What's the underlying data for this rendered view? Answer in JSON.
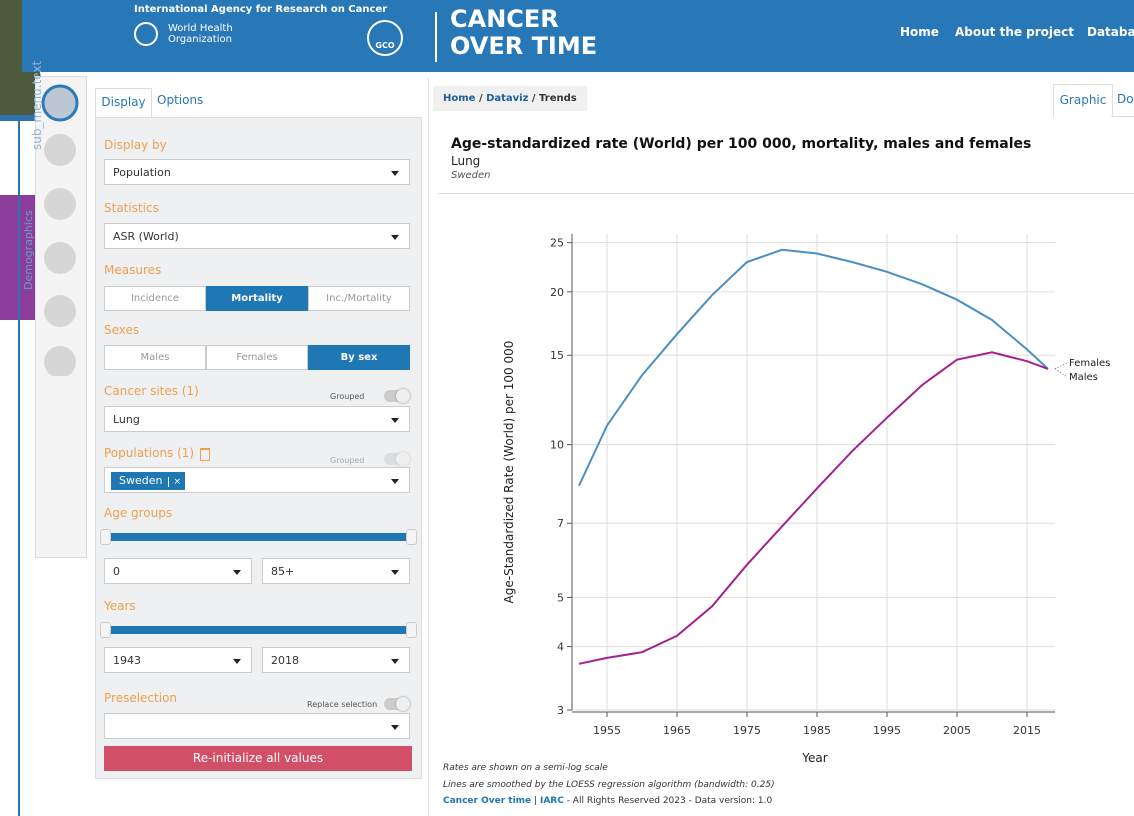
{
  "background": {
    "side_menu_text": "sub_menu.text",
    "side_tab": "Demographics"
  },
  "header": {
    "agency": "International Agency for Research on Cancer",
    "who": [
      "World Health",
      "Organization"
    ],
    "logo": "GCO",
    "title": [
      "CANCER",
      "OVER TIME"
    ],
    "nav": [
      "Home",
      "About the project",
      "Databa"
    ]
  },
  "panel": {
    "tabs": [
      "Display",
      "Options"
    ],
    "display_by": {
      "label": "Display by",
      "value": "Population"
    },
    "statistics": {
      "label": "Statistics",
      "value": "ASR (World)"
    },
    "measures": {
      "label": "Measures",
      "options": [
        "Incidence",
        "Mortality",
        "Inc./Mortality"
      ]
    },
    "sexes": {
      "label": "Sexes",
      "options": [
        "Males",
        "Females",
        "By sex"
      ]
    },
    "cancer_sites": {
      "label": "Cancer sites (1)",
      "toggle": "Grouped",
      "value": "Lung"
    },
    "populations": {
      "label": "Populations (1)",
      "toggle": "Grouped",
      "tag": "Sweden",
      "remove": "×"
    },
    "age_groups": {
      "label": "Age groups",
      "from": 0,
      "to": "85+"
    },
    "years": {
      "label": "Years",
      "from": 1943,
      "to": 2018
    },
    "preselection": {
      "label": "Preselection",
      "toggle": "Replace selection"
    },
    "reset": "Re-initialize all values"
  },
  "breadcrumb": {
    "items": [
      "Home",
      "Dataviz",
      "Trends"
    ],
    "separator": "/"
  },
  "view_tabs": [
    "Graphic",
    "Do"
  ],
  "chart_data": {
    "type": "line",
    "title": "Age-standardized rate (World) per 100 000, mortality, males and females",
    "subtitle": "Lung",
    "population": "Sweden",
    "x_label": "Year",
    "y_label": "Age-Standardized Rate (World) per 100 000",
    "x": [
      1951,
      1955,
      1960,
      1965,
      1970,
      1975,
      1980,
      1985,
      1990,
      1995,
      2000,
      2005,
      2010,
      2015,
      2018
    ],
    "series": [
      {
        "name": "Males",
        "color": "#4a8fc2",
        "values": [
          8.3,
          10.9,
          13.7,
          16.5,
          19.7,
          22.9,
          24.2,
          23.8,
          22.9,
          21.9,
          20.7,
          19.3,
          17.6,
          15.4,
          14.1
        ]
      },
      {
        "name": "Females",
        "color": "#a3228c",
        "values": [
          3.7,
          3.8,
          3.9,
          4.2,
          4.8,
          5.8,
          6.9,
          8.2,
          9.7,
          11.3,
          13.1,
          14.7,
          15.2,
          14.6,
          14.1
        ]
      }
    ],
    "log_scale": true,
    "grid": true,
    "xlim": [
      1950,
      2019
    ],
    "ylim": [
      3,
      26
    ],
    "xticks": [
      1955,
      1965,
      1975,
      1985,
      1995,
      2005,
      2015
    ],
    "yticks": [
      3,
      4,
      5,
      7,
      10,
      15,
      20,
      25
    ]
  },
  "notes": [
    "Rates are shown on a semi-log scale",
    "Lines are smoothed by the LOESS regression algorithm (bandwidth: 0.25)"
  ],
  "footer": {
    "site": "Cancer Over time",
    "separator": "|",
    "org": "IARC",
    "rights": "- All Rights Reserved 2023 - Data version: 1.0"
  }
}
